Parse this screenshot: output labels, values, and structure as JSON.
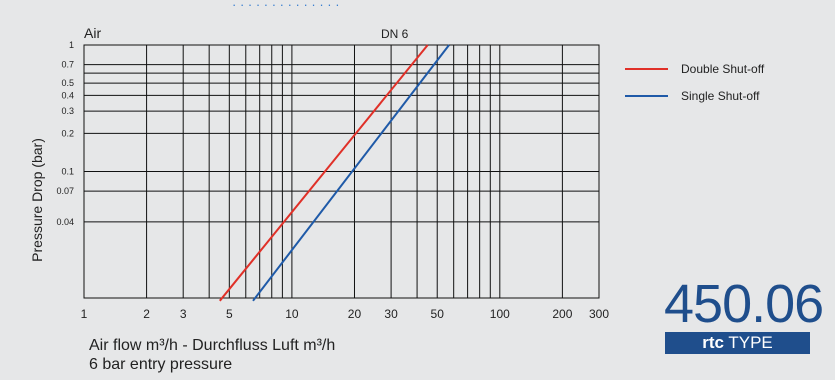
{
  "chart_data": {
    "type": "line",
    "title": "Air",
    "ylabel": "Pressure Drop (bar)",
    "xlabel": "Air flow m³/h - Durchfluss Luft m³/h",
    "subtitle": "6 bar entry pressure",
    "x_scale": "log",
    "y_scale": "log",
    "xlim": [
      1,
      300
    ],
    "ylim": [
      0.01,
      1
    ],
    "grid": true,
    "legend_position": "right",
    "x_tick_labels": [
      "1",
      "2",
      "3",
      "5",
      "10",
      "20",
      "30",
      "50",
      "100",
      "200",
      "300"
    ],
    "y_tick_labels": [
      "1",
      "0.7",
      "0.5",
      "0.4",
      "0.3",
      "0.2",
      "0.1",
      "0.07",
      "0.04"
    ],
    "annotation": "DN 6",
    "series": [
      {
        "name": "Double Shut-off",
        "color": "#e03028",
        "x": [
          4.5,
          45
        ],
        "y": [
          0.0095,
          1.0
        ]
      },
      {
        "name": "Single Shut-off",
        "color": "#1f5aa8",
        "x": [
          6.5,
          57
        ],
        "y": [
          0.0095,
          1.0
        ]
      }
    ]
  },
  "brand": {
    "number": "450.06",
    "logo": "rtc",
    "type_label": "TYPE"
  }
}
